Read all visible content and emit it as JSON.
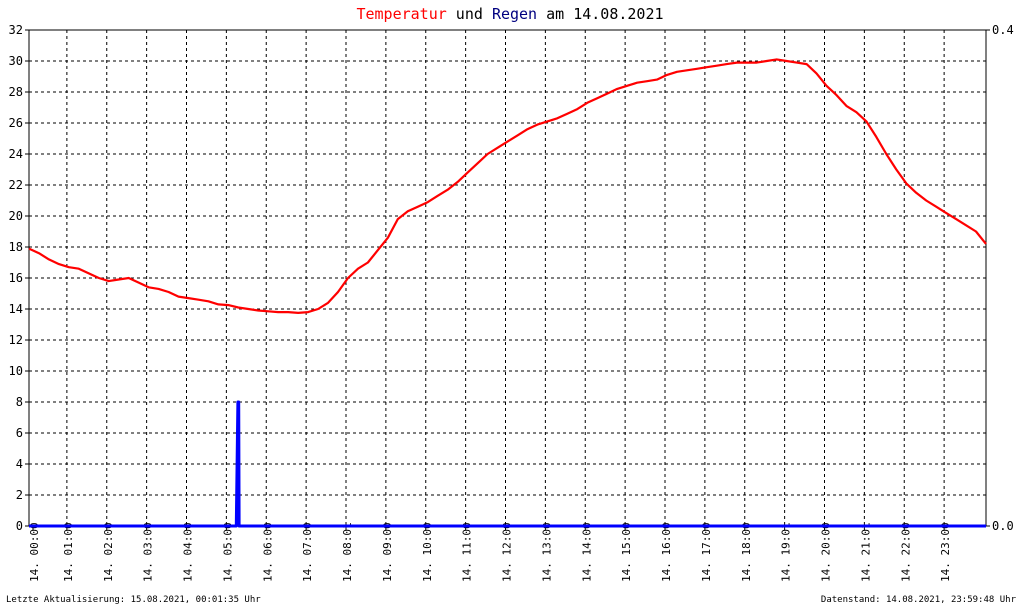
{
  "title": {
    "part1": "Temperatur",
    "part2": " und ",
    "part3": "Regen",
    "part4": " am 14.08.2021"
  },
  "colors": {
    "temperature": "#ff0000",
    "rain": "#0000ff",
    "title_dark": "#000080",
    "grid": "#000000",
    "axis": "#000000"
  },
  "footer": {
    "left": "Letzte Aktualisierung: 15.08.2021, 00:01:35 Uhr",
    "right": "Datenstand: 14.08.2021, 23:59:48 Uhr"
  },
  "chart_data": {
    "type": "line",
    "x_unit": "hours",
    "x_range": [
      0,
      24
    ],
    "xtick_labels": [
      "14. 00:00",
      "14. 01:00",
      "14. 02:00",
      "14. 03:00",
      "14. 04:00",
      "14. 05:00",
      "14. 06:00",
      "14. 07:00",
      "14. 08:01",
      "14. 09:00",
      "14. 10:00",
      "14. 11:00",
      "14. 12:00",
      "14. 13:00",
      "14. 14:00",
      "14. 15:00",
      "14. 16:00",
      "14. 17:00",
      "14. 18:00",
      "14. 19:01",
      "14. 20:00",
      "14. 21:01",
      "14. 22:00",
      "14. 23:00"
    ],
    "y_left": {
      "range": [
        0,
        32
      ],
      "ticks": [
        "0",
        "2",
        "4",
        "6",
        "8",
        "10",
        "12",
        "14",
        "16",
        "18",
        "20",
        "22",
        "24",
        "26",
        "28",
        "30",
        "32"
      ]
    },
    "y_right": {
      "range": [
        0,
        0.4
      ],
      "ticks": [
        "0.0",
        "0.4"
      ]
    },
    "grid": true,
    "series": [
      {
        "name": "Temperatur",
        "axis": "left",
        "points": [
          [
            0.0,
            17.9
          ],
          [
            0.25,
            17.6
          ],
          [
            0.5,
            17.2
          ],
          [
            0.75,
            16.9
          ],
          [
            1.0,
            16.7
          ],
          [
            1.25,
            16.6
          ],
          [
            1.5,
            16.3
          ],
          [
            1.75,
            16.0
          ],
          [
            2.0,
            15.8
          ],
          [
            2.25,
            15.9
          ],
          [
            2.5,
            16.0
          ],
          [
            2.75,
            15.7
          ],
          [
            3.0,
            15.4
          ],
          [
            3.25,
            15.3
          ],
          [
            3.5,
            15.1
          ],
          [
            3.75,
            14.8
          ],
          [
            4.0,
            14.7
          ],
          [
            4.25,
            14.6
          ],
          [
            4.5,
            14.5
          ],
          [
            4.75,
            14.3
          ],
          [
            5.0,
            14.25
          ],
          [
            5.25,
            14.1
          ],
          [
            5.5,
            14.0
          ],
          [
            5.75,
            13.9
          ],
          [
            6.0,
            13.85
          ],
          [
            6.25,
            13.8
          ],
          [
            6.5,
            13.8
          ],
          [
            6.75,
            13.75
          ],
          [
            7.0,
            13.8
          ],
          [
            7.25,
            14.0
          ],
          [
            7.5,
            14.4
          ],
          [
            7.75,
            15.1
          ],
          [
            8.0,
            16.0
          ],
          [
            8.25,
            16.6
          ],
          [
            8.5,
            17.0
          ],
          [
            8.75,
            17.8
          ],
          [
            9.0,
            18.6
          ],
          [
            9.25,
            19.8
          ],
          [
            9.5,
            20.3
          ],
          [
            9.75,
            20.6
          ],
          [
            10.0,
            20.9
          ],
          [
            10.25,
            21.3
          ],
          [
            10.5,
            21.7
          ],
          [
            10.75,
            22.2
          ],
          [
            11.0,
            22.8
          ],
          [
            11.25,
            23.4
          ],
          [
            11.5,
            24.0
          ],
          [
            11.75,
            24.4
          ],
          [
            12.0,
            24.8
          ],
          [
            12.25,
            25.2
          ],
          [
            12.5,
            25.6
          ],
          [
            12.75,
            25.9
          ],
          [
            13.0,
            26.1
          ],
          [
            13.25,
            26.3
          ],
          [
            13.5,
            26.6
          ],
          [
            13.75,
            26.9
          ],
          [
            14.0,
            27.3
          ],
          [
            14.25,
            27.6
          ],
          [
            14.5,
            27.9
          ],
          [
            14.75,
            28.2
          ],
          [
            15.0,
            28.4
          ],
          [
            15.25,
            28.6
          ],
          [
            15.5,
            28.7
          ],
          [
            15.75,
            28.8
          ],
          [
            16.0,
            29.1
          ],
          [
            16.25,
            29.3
          ],
          [
            16.5,
            29.4
          ],
          [
            16.75,
            29.5
          ],
          [
            17.0,
            29.6
          ],
          [
            17.25,
            29.7
          ],
          [
            17.5,
            29.8
          ],
          [
            17.75,
            29.9
          ],
          [
            18.0,
            29.9
          ],
          [
            18.25,
            29.9
          ],
          [
            18.5,
            30.0
          ],
          [
            18.75,
            30.1
          ],
          [
            19.0,
            30.0
          ],
          [
            19.25,
            29.9
          ],
          [
            19.5,
            29.8
          ],
          [
            19.75,
            29.2
          ],
          [
            20.0,
            28.4
          ],
          [
            20.25,
            27.8
          ],
          [
            20.5,
            27.1
          ],
          [
            20.75,
            26.7
          ],
          [
            21.0,
            26.1
          ],
          [
            21.25,
            25.1
          ],
          [
            21.5,
            24.0
          ],
          [
            21.75,
            23.0
          ],
          [
            22.0,
            22.1
          ],
          [
            22.25,
            21.5
          ],
          [
            22.5,
            21.0
          ],
          [
            22.75,
            20.6
          ],
          [
            23.0,
            20.2
          ],
          [
            23.25,
            19.8
          ],
          [
            23.5,
            19.4
          ],
          [
            23.75,
            19.0
          ],
          [
            24.0,
            18.2
          ]
        ]
      },
      {
        "name": "Regen",
        "axis": "left",
        "points": [
          [
            0.0,
            0.0
          ],
          [
            5.2,
            0.0
          ],
          [
            5.22,
            4.0
          ],
          [
            5.24,
            8.0
          ],
          [
            5.26,
            8.0
          ],
          [
            5.27,
            0.0
          ],
          [
            24.0,
            0.0
          ]
        ]
      }
    ]
  }
}
